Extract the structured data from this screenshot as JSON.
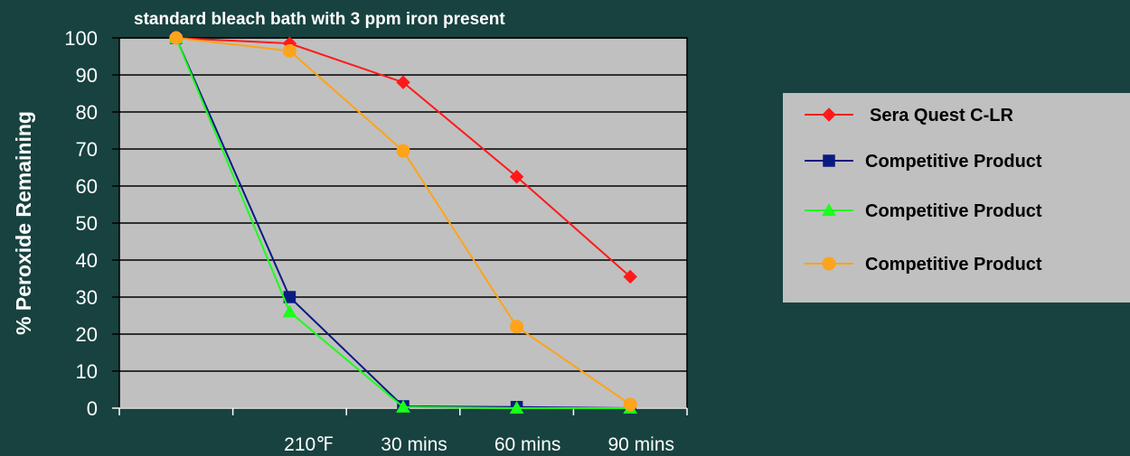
{
  "chart_data": {
    "type": "line",
    "title": "standard bleach bath with 3 ppm iron present",
    "xlabel": "",
    "ylabel": "% Peroxide Remaining",
    "ylim": [
      0,
      100
    ],
    "yticks": [
      "0",
      "10",
      "20",
      "30",
      "40",
      "50",
      "60",
      "70",
      "80",
      "90",
      "100"
    ],
    "categories": [
      "",
      "210℉",
      "30 mins",
      "60 mins",
      "90 mins"
    ],
    "grid": true,
    "legend_position": "right",
    "plot_background": "#c0c0c0",
    "legend_background": "#c0c0c0",
    "background": "#17423f",
    "series": [
      {
        "name": "Sera Quest C-LR",
        "color": "#ff1a1a",
        "marker": "diamond",
        "values": [
          100,
          98.5,
          88,
          62.5,
          35.5
        ]
      },
      {
        "name": "Competitive Product",
        "color": "#0a1a80",
        "marker": "square",
        "values": [
          100,
          30,
          0.5,
          0.3,
          0
        ]
      },
      {
        "name": "Competitive Product",
        "color": "#1aff1a",
        "marker": "triangle",
        "values": [
          100,
          26,
          0.3,
          0,
          0
        ]
      },
      {
        "name": "Competitive Product",
        "color": "#ffa31a",
        "marker": "circle",
        "values": [
          100,
          96.5,
          69.5,
          22,
          1
        ]
      }
    ]
  }
}
